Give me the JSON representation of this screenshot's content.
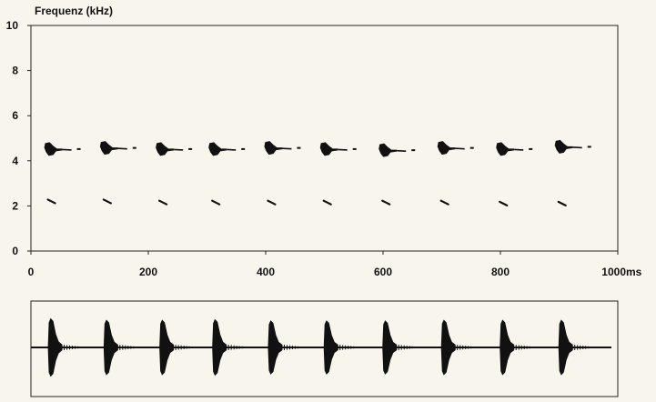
{
  "chart_data": [
    {
      "type": "scatter",
      "ylabel": "Frequenz (kHz)",
      "xunit": "ms",
      "xlim": [
        0,
        1000
      ],
      "ylim": [
        0,
        10
      ],
      "xticks": [
        "0",
        "200",
        "400",
        "600",
        "800",
        "1000"
      ],
      "yticks": [
        "0",
        "2",
        "4",
        "6",
        "8",
        "10"
      ],
      "grid": false,
      "ink_color": "#111111",
      "background_color": "#f8f6ec",
      "series": [
        {
          "x": [
            35,
            130,
            225,
            315,
            410,
            505,
            605,
            705,
            805,
            905
          ],
          "y": [
            4.5,
            4.55,
            4.5,
            4.5,
            4.55,
            4.5,
            4.45,
            4.55,
            4.5,
            4.6
          ]
        },
        {
          "x": [
            35,
            130,
            225,
            315,
            410,
            505,
            605,
            705,
            805,
            905
          ],
          "y": [
            2.2,
            2.2,
            2.15,
            2.15,
            2.15,
            2.15,
            2.15,
            2.15,
            2.1,
            2.1
          ]
        }
      ]
    },
    {
      "type": "line",
      "title": "",
      "xlim": [
        0,
        1000
      ],
      "pulse_times": [
        35,
        130,
        225,
        315,
        410,
        505,
        605,
        705,
        805,
        905
      ],
      "pulse_amplitudes": [
        0.95,
        0.9,
        0.9,
        0.92,
        0.88,
        0.88,
        0.88,
        0.9,
        0.9,
        0.9
      ]
    }
  ]
}
